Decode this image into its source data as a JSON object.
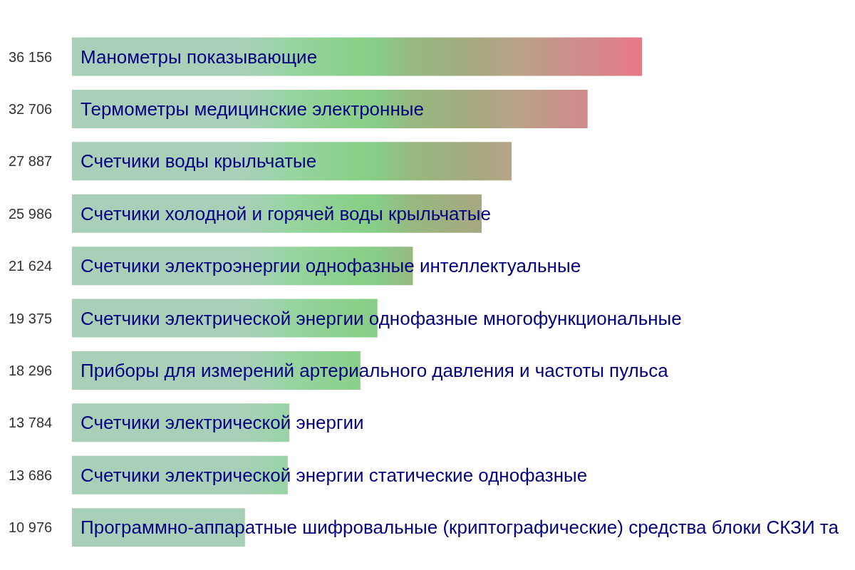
{
  "chart_data": {
    "type": "bar",
    "orientation": "horizontal",
    "categories": [
      "Манометры показывающие",
      "Термометры медицинские электронные",
      "Счетчики воды крыльчатые",
      "Счетчики холодной и горячей воды крыльчатые",
      "Счетчики электроэнергии однофазные интеллектуальные",
      "Счетчики электрической энергии однофазные многофункциональные",
      "Приборы для измерений артериального давления и частоты пульса",
      "Счетчики электрической энергии",
      "Счетчики электрической энергии статические однофазные",
      "Программно-аппаратные шифровальные (криптографические) средства блоки СКЗИ та"
    ],
    "values": [
      36156,
      32706,
      27887,
      25986,
      21624,
      19375,
      18296,
      13784,
      13686,
      10976
    ],
    "value_labels": [
      "36 156",
      "32 706",
      "27 887",
      "25 986",
      "21 624",
      "19 375",
      "18 296",
      "13 784",
      "13 686",
      "10 976"
    ],
    "colors": [
      "#e87888",
      "#d08a8a",
      "#b8a488",
      "#a8a880",
      "#98b880",
      "#88cc88",
      "#88d088",
      "#98d4a0",
      "#98d4a4",
      "#a8d0b8"
    ],
    "tick_labels": "y"
  }
}
